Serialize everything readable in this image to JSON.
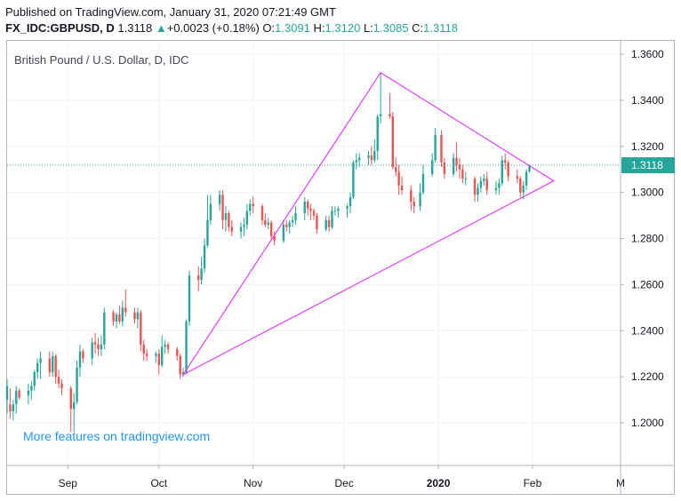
{
  "header": {
    "published": "Published on TradingView.com, January 31, 2020 07:21:49 GMT",
    "symbol": "FX_IDC:GBPUSD, D",
    "last": "1.3118",
    "up_arrow": "▲",
    "change": "+0.0023 (+0.18%)",
    "o_label": "O:",
    "o_value": "1.3091",
    "h_label": "H:",
    "h_value": "1.3120",
    "l_label": "L:",
    "l_value": "1.3085",
    "c_label": "C:",
    "c_value": "1.3118"
  },
  "series_title": "British Pound / U.S. Dollar, D, IDC",
  "promo_link": "More features on tradingview.com",
  "colors": {
    "up": "#26a69a",
    "down": "#ef5350",
    "grid": "#f0f3fa",
    "triangle": "#e040fb",
    "price_line": "#26a69a",
    "axis_text": "#131722"
  },
  "chart_data": {
    "type": "candlestick",
    "title": "British Pound / U.S. Dollar, D, IDC",
    "x_ticks": [
      {
        "label": "Sep",
        "date": "2019-09-01"
      },
      {
        "label": "Oct",
        "date": "2019-10-01"
      },
      {
        "label": "Nov",
        "date": "2019-11-01"
      },
      {
        "label": "Dec",
        "date": "2019-12-01"
      },
      {
        "label": "2020",
        "date": "2020-01-01",
        "bold": true
      },
      {
        "label": "Feb",
        "date": "2020-02-01"
      },
      {
        "label": "M",
        "date": "2020-03-01"
      }
    ],
    "xlim": [
      "2019-08-12",
      "2020-03-01"
    ],
    "y_ticks": [
      "1.3600",
      "1.3400",
      "1.3200",
      "1.3000",
      "1.2800",
      "1.2600",
      "1.2400",
      "1.2200",
      "1.2000"
    ],
    "ylim": [
      1.1815,
      1.3658
    ],
    "last_price": {
      "value": 1.3118,
      "label": "1.3118"
    },
    "ohlc": [
      {
        "date": "2019-08-12",
        "o": 1.21,
        "h": 1.219,
        "l": 1.204,
        "c": 1.216
      },
      {
        "date": "2019-08-13",
        "o": 1.208,
        "h": 1.215,
        "l": 1.202,
        "c": 1.205
      },
      {
        "date": "2019-08-14",
        "o": 1.205,
        "h": 1.21,
        "l": 1.201,
        "c": 1.208
      },
      {
        "date": "2019-08-15",
        "o": 1.208,
        "h": 1.216,
        "l": 1.204,
        "c": 1.214
      },
      {
        "date": "2019-08-16",
        "o": 1.214,
        "h": 1.215,
        "l": 1.21,
        "c": 1.211
      },
      {
        "date": "2019-08-19",
        "o": 1.212,
        "h": 1.217,
        "l": 1.208,
        "c": 1.214
      },
      {
        "date": "2019-08-20",
        "o": 1.214,
        "h": 1.218,
        "l": 1.21,
        "c": 1.216
      },
      {
        "date": "2019-08-21",
        "o": 1.216,
        "h": 1.223,
        "l": 1.214,
        "c": 1.222
      },
      {
        "date": "2019-08-22",
        "o": 1.222,
        "h": 1.228,
        "l": 1.219,
        "c": 1.226
      },
      {
        "date": "2019-08-23",
        "o": 1.226,
        "h": 1.231,
        "l": 1.219,
        "c": 1.228
      },
      {
        "date": "2019-08-26",
        "o": 1.228,
        "h": 1.231,
        "l": 1.22,
        "c": 1.222
      },
      {
        "date": "2019-08-27",
        "o": 1.222,
        "h": 1.231,
        "l": 1.22,
        "c": 1.229
      },
      {
        "date": "2019-08-28",
        "o": 1.229,
        "h": 1.23,
        "l": 1.217,
        "c": 1.22
      },
      {
        "date": "2019-08-29",
        "o": 1.22,
        "h": 1.223,
        "l": 1.215,
        "c": 1.217
      },
      {
        "date": "2019-08-30",
        "o": 1.217,
        "h": 1.219,
        "l": 1.212,
        "c": 1.215
      },
      {
        "date": "2019-09-02",
        "o": 1.215,
        "h": 1.216,
        "l": 1.196,
        "c": 1.206
      },
      {
        "date": "2019-09-03",
        "o": 1.206,
        "h": 1.213,
        "l": 1.196,
        "c": 1.209
      },
      {
        "date": "2019-09-04",
        "o": 1.209,
        "h": 1.227,
        "l": 1.208,
        "c": 1.224
      },
      {
        "date": "2019-09-05",
        "o": 1.224,
        "h": 1.234,
        "l": 1.22,
        "c": 1.231
      },
      {
        "date": "2019-09-06",
        "o": 1.231,
        "h": 1.232,
        "l": 1.226,
        "c": 1.228
      },
      {
        "date": "2019-09-09",
        "o": 1.228,
        "h": 1.237,
        "l": 1.225,
        "c": 1.235
      },
      {
        "date": "2019-09-10",
        "o": 1.235,
        "h": 1.239,
        "l": 1.23,
        "c": 1.234
      },
      {
        "date": "2019-09-11",
        "o": 1.234,
        "h": 1.237,
        "l": 1.229,
        "c": 1.232
      },
      {
        "date": "2019-09-12",
        "o": 1.232,
        "h": 1.238,
        "l": 1.229,
        "c": 1.234
      },
      {
        "date": "2019-09-13",
        "o": 1.234,
        "h": 1.25,
        "l": 1.232,
        "c": 1.248
      },
      {
        "date": "2019-09-16",
        "o": 1.248,
        "h": 1.249,
        "l": 1.242,
        "c": 1.244
      },
      {
        "date": "2019-09-17",
        "o": 1.244,
        "h": 1.248,
        "l": 1.241,
        "c": 1.247
      },
      {
        "date": "2019-09-18",
        "o": 1.247,
        "h": 1.251,
        "l": 1.243,
        "c": 1.244
      },
      {
        "date": "2019-09-19",
        "o": 1.244,
        "h": 1.253,
        "l": 1.242,
        "c": 1.25
      },
      {
        "date": "2019-09-20",
        "o": 1.25,
        "h": 1.258,
        "l": 1.246,
        "c": 1.248
      },
      {
        "date": "2019-09-23",
        "o": 1.248,
        "h": 1.25,
        "l": 1.243,
        "c": 1.245
      },
      {
        "date": "2019-09-24",
        "o": 1.245,
        "h": 1.25,
        "l": 1.241,
        "c": 1.248
      },
      {
        "date": "2019-09-25",
        "o": 1.248,
        "h": 1.249,
        "l": 1.231,
        "c": 1.234
      },
      {
        "date": "2019-09-26",
        "o": 1.234,
        "h": 1.236,
        "l": 1.227,
        "c": 1.23
      },
      {
        "date": "2019-09-27",
        "o": 1.23,
        "h": 1.232,
        "l": 1.227,
        "c": 1.229
      },
      {
        "date": "2019-09-30",
        "o": 1.229,
        "h": 1.231,
        "l": 1.226,
        "c": 1.23
      },
      {
        "date": "2019-10-01",
        "o": 1.23,
        "h": 1.232,
        "l": 1.221,
        "c": 1.225
      },
      {
        "date": "2019-10-02",
        "o": 1.225,
        "h": 1.238,
        "l": 1.224,
        "c": 1.233
      },
      {
        "date": "2019-10-03",
        "o": 1.233,
        "h": 1.236,
        "l": 1.23,
        "c": 1.234
      },
      {
        "date": "2019-10-04",
        "o": 1.234,
        "h": 1.235,
        "l": 1.23,
        "c": 1.232
      },
      {
        "date": "2019-10-07",
        "o": 1.232,
        "h": 1.233,
        "l": 1.227,
        "c": 1.229
      },
      {
        "date": "2019-10-08",
        "o": 1.229,
        "h": 1.23,
        "l": 1.219,
        "c": 1.221
      },
      {
        "date": "2019-10-09",
        "o": 1.221,
        "h": 1.224,
        "l": 1.22,
        "c": 1.222
      },
      {
        "date": "2019-10-10",
        "o": 1.222,
        "h": 1.245,
        "l": 1.221,
        "c": 1.244
      },
      {
        "date": "2019-10-11",
        "o": 1.244,
        "h": 1.266,
        "l": 1.242,
        "c": 1.264
      },
      {
        "date": "2019-10-14",
        "o": 1.264,
        "h": 1.268,
        "l": 1.257,
        "c": 1.262
      },
      {
        "date": "2019-10-15",
        "o": 1.262,
        "h": 1.272,
        "l": 1.26,
        "c": 1.267
      },
      {
        "date": "2019-10-16",
        "o": 1.267,
        "h": 1.28,
        "l": 1.265,
        "c": 1.277
      },
      {
        "date": "2019-10-17",
        "o": 1.277,
        "h": 1.299,
        "l": 1.276,
        "c": 1.288
      },
      {
        "date": "2019-10-18",
        "o": 1.288,
        "h": 1.299,
        "l": 1.286,
        "c": 1.295
      },
      {
        "date": "2019-10-21",
        "o": 1.295,
        "h": 1.301,
        "l": 1.292,
        "c": 1.299
      },
      {
        "date": "2019-10-22",
        "o": 1.299,
        "h": 1.301,
        "l": 1.284,
        "c": 1.288
      },
      {
        "date": "2019-10-23",
        "o": 1.288,
        "h": 1.294,
        "l": 1.283,
        "c": 1.291
      },
      {
        "date": "2019-10-24",
        "o": 1.291,
        "h": 1.292,
        "l": 1.283,
        "c": 1.285
      },
      {
        "date": "2019-10-25",
        "o": 1.285,
        "h": 1.288,
        "l": 1.281,
        "c": 1.283
      },
      {
        "date": "2019-10-28",
        "o": 1.283,
        "h": 1.287,
        "l": 1.28,
        "c": 1.285
      },
      {
        "date": "2019-10-29",
        "o": 1.285,
        "h": 1.289,
        "l": 1.281,
        "c": 1.286
      },
      {
        "date": "2019-10-30",
        "o": 1.286,
        "h": 1.295,
        "l": 1.284,
        "c": 1.292
      },
      {
        "date": "2019-10-31",
        "o": 1.292,
        "h": 1.297,
        "l": 1.29,
        "c": 1.295
      },
      {
        "date": "2019-11-01",
        "o": 1.295,
        "h": 1.298,
        "l": 1.291,
        "c": 1.294
      },
      {
        "date": "2019-11-04",
        "o": 1.294,
        "h": 1.295,
        "l": 1.286,
        "c": 1.288
      },
      {
        "date": "2019-11-05",
        "o": 1.288,
        "h": 1.291,
        "l": 1.285,
        "c": 1.286
      },
      {
        "date": "2019-11-06",
        "o": 1.286,
        "h": 1.289,
        "l": 1.284,
        "c": 1.287
      },
      {
        "date": "2019-11-07",
        "o": 1.287,
        "h": 1.288,
        "l": 1.279,
        "c": 1.281
      },
      {
        "date": "2019-11-08",
        "o": 1.281,
        "h": 1.283,
        "l": 1.277,
        "c": 1.279
      },
      {
        "date": "2019-11-11",
        "o": 1.279,
        "h": 1.288,
        "l": 1.278,
        "c": 1.286
      },
      {
        "date": "2019-11-12",
        "o": 1.286,
        "h": 1.288,
        "l": 1.283,
        "c": 1.285
      },
      {
        "date": "2019-11-13",
        "o": 1.285,
        "h": 1.288,
        "l": 1.282,
        "c": 1.287
      },
      {
        "date": "2019-11-14",
        "o": 1.287,
        "h": 1.29,
        "l": 1.285,
        "c": 1.288
      },
      {
        "date": "2019-11-15",
        "o": 1.288,
        "h": 1.294,
        "l": 1.286,
        "c": 1.291
      },
      {
        "date": "2019-11-18",
        "o": 1.291,
        "h": 1.298,
        "l": 1.288,
        "c": 1.296
      },
      {
        "date": "2019-11-19",
        "o": 1.296,
        "h": 1.297,
        "l": 1.29,
        "c": 1.293
      },
      {
        "date": "2019-11-20",
        "o": 1.293,
        "h": 1.295,
        "l": 1.288,
        "c": 1.292
      },
      {
        "date": "2019-11-21",
        "o": 1.292,
        "h": 1.293,
        "l": 1.288,
        "c": 1.29
      },
      {
        "date": "2019-11-22",
        "o": 1.29,
        "h": 1.291,
        "l": 1.282,
        "c": 1.284
      },
      {
        "date": "2019-11-25",
        "o": 1.284,
        "h": 1.29,
        "l": 1.283,
        "c": 1.288
      },
      {
        "date": "2019-11-26",
        "o": 1.288,
        "h": 1.29,
        "l": 1.283,
        "c": 1.285
      },
      {
        "date": "2019-11-27",
        "o": 1.285,
        "h": 1.294,
        "l": 1.284,
        "c": 1.292
      },
      {
        "date": "2019-11-28",
        "o": 1.292,
        "h": 1.294,
        "l": 1.29,
        "c": 1.292
      },
      {
        "date": "2019-11-29",
        "o": 1.292,
        "h": 1.294,
        "l": 1.289,
        "c": 1.293
      },
      {
        "date": "2019-12-02",
        "o": 1.293,
        "h": 1.295,
        "l": 1.289,
        "c": 1.294
      },
      {
        "date": "2019-12-03",
        "o": 1.294,
        "h": 1.3,
        "l": 1.291,
        "c": 1.298
      },
      {
        "date": "2019-12-04",
        "o": 1.298,
        "h": 1.314,
        "l": 1.297,
        "c": 1.313
      },
      {
        "date": "2019-12-05",
        "o": 1.313,
        "h": 1.317,
        "l": 1.31,
        "c": 1.314
      },
      {
        "date": "2019-12-06",
        "o": 1.314,
        "h": 1.317,
        "l": 1.311,
        "c": 1.315
      },
      {
        "date": "2019-12-09",
        "o": 1.315,
        "h": 1.318,
        "l": 1.312,
        "c": 1.316
      },
      {
        "date": "2019-12-10",
        "o": 1.316,
        "h": 1.32,
        "l": 1.312,
        "c": 1.314
      },
      {
        "date": "2019-12-11",
        "o": 1.314,
        "h": 1.323,
        "l": 1.313,
        "c": 1.318
      },
      {
        "date": "2019-12-12",
        "o": 1.318,
        "h": 1.334,
        "l": 1.314,
        "c": 1.333
      },
      {
        "date": "2019-12-13",
        "o": 1.333,
        "h": 1.352,
        "l": 1.33,
        "c": 1.334
      },
      {
        "date": "2019-12-16",
        "o": 1.334,
        "h": 1.343,
        "l": 1.332,
        "c": 1.333
      },
      {
        "date": "2019-12-17",
        "o": 1.333,
        "h": 1.335,
        "l": 1.31,
        "c": 1.311
      },
      {
        "date": "2019-12-18",
        "o": 1.311,
        "h": 1.315,
        "l": 1.307,
        "c": 1.309
      },
      {
        "date": "2019-12-19",
        "o": 1.309,
        "h": 1.312,
        "l": 1.299,
        "c": 1.303
      },
      {
        "date": "2019-12-20",
        "o": 1.303,
        "h": 1.307,
        "l": 1.299,
        "c": 1.301
      },
      {
        "date": "2019-12-23",
        "o": 1.301,
        "h": 1.303,
        "l": 1.292,
        "c": 1.296
      },
      {
        "date": "2019-12-24",
        "o": 1.296,
        "h": 1.298,
        "l": 1.291,
        "c": 1.294
      },
      {
        "date": "2019-12-26",
        "o": 1.294,
        "h": 1.304,
        "l": 1.292,
        "c": 1.3
      },
      {
        "date": "2019-12-27",
        "o": 1.3,
        "h": 1.312,
        "l": 1.299,
        "c": 1.308
      },
      {
        "date": "2019-12-30",
        "o": 1.308,
        "h": 1.317,
        "l": 1.307,
        "c": 1.314
      },
      {
        "date": "2019-12-31",
        "o": 1.314,
        "h": 1.328,
        "l": 1.313,
        "c": 1.325
      },
      {
        "date": "2020-01-02",
        "o": 1.325,
        "h": 1.327,
        "l": 1.311,
        "c": 1.313
      },
      {
        "date": "2020-01-03",
        "o": 1.313,
        "h": 1.315,
        "l": 1.306,
        "c": 1.308
      },
      {
        "date": "2020-01-06",
        "o": 1.308,
        "h": 1.317,
        "l": 1.307,
        "c": 1.315
      },
      {
        "date": "2020-01-07",
        "o": 1.315,
        "h": 1.322,
        "l": 1.309,
        "c": 1.312
      },
      {
        "date": "2020-01-08",
        "o": 1.312,
        "h": 1.315,
        "l": 1.306,
        "c": 1.31
      },
      {
        "date": "2020-01-09",
        "o": 1.31,
        "h": 1.312,
        "l": 1.304,
        "c": 1.306
      },
      {
        "date": "2020-01-10",
        "o": 1.306,
        "h": 1.309,
        "l": 1.303,
        "c": 1.306
      },
      {
        "date": "2020-01-13",
        "o": 1.306,
        "h": 1.307,
        "l": 1.296,
        "c": 1.299
      },
      {
        "date": "2020-01-14",
        "o": 1.299,
        "h": 1.304,
        "l": 1.296,
        "c": 1.302
      },
      {
        "date": "2020-01-15",
        "o": 1.302,
        "h": 1.307,
        "l": 1.3,
        "c": 1.305
      },
      {
        "date": "2020-01-16",
        "o": 1.305,
        "h": 1.308,
        "l": 1.303,
        "c": 1.306
      },
      {
        "date": "2020-01-17",
        "o": 1.306,
        "h": 1.309,
        "l": 1.299,
        "c": 1.301
      },
      {
        "date": "2020-01-20",
        "o": 1.301,
        "h": 1.305,
        "l": 1.299,
        "c": 1.302
      },
      {
        "date": "2020-01-21",
        "o": 1.302,
        "h": 1.306,
        "l": 1.299,
        "c": 1.304
      },
      {
        "date": "2020-01-22",
        "o": 1.304,
        "h": 1.316,
        "l": 1.303,
        "c": 1.314
      },
      {
        "date": "2020-01-23",
        "o": 1.314,
        "h": 1.317,
        "l": 1.31,
        "c": 1.313
      },
      {
        "date": "2020-01-24",
        "o": 1.313,
        "h": 1.314,
        "l": 1.305,
        "c": 1.307
      },
      {
        "date": "2020-01-27",
        "o": 1.307,
        "h": 1.31,
        "l": 1.304,
        "c": 1.306
      },
      {
        "date": "2020-01-28",
        "o": 1.306,
        "h": 1.307,
        "l": 1.298,
        "c": 1.3
      },
      {
        "date": "2020-01-29",
        "o": 1.3,
        "h": 1.305,
        "l": 1.297,
        "c": 1.303
      },
      {
        "date": "2020-01-30",
        "o": 1.303,
        "h": 1.31,
        "l": 1.301,
        "c": 1.309
      },
      {
        "date": "2020-01-31",
        "o": 1.3091,
        "h": 1.312,
        "l": 1.3085,
        "c": 1.3118
      }
    ],
    "triangle": [
      {
        "date": "2019-12-13",
        "price": 1.352
      },
      {
        "date": "2020-02-08",
        "price": 1.305
      },
      {
        "date": "2019-10-09",
        "price": 1.221
      }
    ],
    "grid": true
  }
}
